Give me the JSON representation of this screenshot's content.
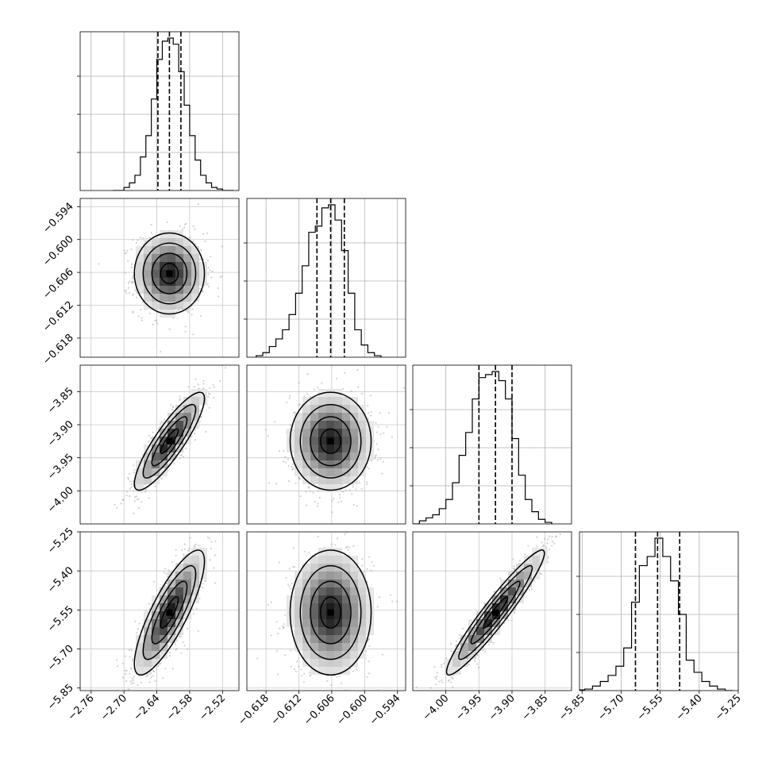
{
  "chart_data": {
    "type": "corner",
    "grid": true,
    "parameters": [
      {
        "name": "",
        "range": [
          -2.78,
          -2.49
        ],
        "ticks": [
          "-2.76",
          "-2.70",
          "-2.64",
          "-2.58",
          "-2.52"
        ],
        "tick_values": [
          -2.76,
          -2.7,
          -2.64,
          -2.58,
          -2.52
        ]
      },
      {
        "name": "",
        "range": [
          -0.6215,
          -0.5925
        ],
        "ticks": [
          "-0.618",
          "-0.612",
          "-0.606",
          "-0.600",
          "-0.594"
        ],
        "tick_values": [
          -0.618,
          -0.612,
          -0.606,
          -0.6,
          -0.594
        ]
      },
      {
        "name": "",
        "range": [
          -4.05,
          -3.81
        ],
        "ticks": [
          "-4.00",
          "-3.95",
          "-3.90",
          "-3.85"
        ],
        "tick_values": [
          -4.0,
          -3.95,
          -3.9,
          -3.85
        ]
      },
      {
        "name": "",
        "range": [
          -5.86,
          -5.25
        ],
        "ticks": [
          "-5.85",
          "-5.70",
          "-5.55",
          "-5.40",
          "-5.25"
        ],
        "tick_values": [
          -5.85,
          -5.7,
          -5.55,
          -5.4,
          -5.25
        ]
      }
    ],
    "y_tick_labels": {
      "row1": [
        "-0.594",
        "-0.600",
        "-0.606",
        "-0.612",
        "-0.618"
      ],
      "row2": [
        "-3.85",
        "-3.90",
        "-3.95",
        "-4.00"
      ],
      "row3": [
        "-5.25",
        "-5.40",
        "-5.55",
        "-5.70",
        "-5.85"
      ]
    },
    "quantiles": [
      [
        -2.638,
        -2.617,
        -2.596
      ],
      [
        -0.6087,
        -0.6062,
        -0.6037
      ],
      [
        -3.95,
        -3.925,
        -3.9
      ],
      [
        -5.645,
        -5.56,
        -5.475
      ]
    ],
    "histograms": [
      {
        "edges": [
          -2.72,
          -2.7,
          -2.69,
          -2.68,
          -2.67,
          -2.66,
          -2.65,
          -2.64,
          -2.63,
          -2.62,
          -2.61,
          -2.6,
          -2.59,
          -2.58,
          -2.57,
          -2.56,
          -2.55,
          -2.54,
          -2.53,
          -2.52,
          -2.5
        ],
        "counts": [
          0,
          0.02,
          0.05,
          0.1,
          0.22,
          0.36,
          0.6,
          0.86,
          0.98,
          1.0,
          0.96,
          0.78,
          0.56,
          0.36,
          0.2,
          0.1,
          0.05,
          0.02,
          0.01,
          0
        ]
      },
      {
        "edges": [
          -0.6198,
          -0.6186,
          -0.6174,
          -0.6162,
          -0.615,
          -0.6138,
          -0.6126,
          -0.6114,
          -0.6102,
          -0.609,
          -0.6078,
          -0.6066,
          -0.6054,
          -0.6042,
          -0.603,
          -0.6018,
          -0.6006,
          -0.5994,
          -0.5982,
          -0.597
        ],
        "counts": [
          0.01,
          0.03,
          0.07,
          0.12,
          0.18,
          0.28,
          0.42,
          0.6,
          0.82,
          0.86,
          0.98,
          1.0,
          0.9,
          0.7,
          0.42,
          0.18,
          0.08,
          0.03,
          0.01
        ]
      },
      {
        "edges": [
          -4.05,
          -4.04,
          -4.03,
          -4.02,
          -4.01,
          -4.0,
          -3.99,
          -3.98,
          -3.97,
          -3.96,
          -3.95,
          -3.94,
          -3.93,
          -3.92,
          -3.91,
          -3.9,
          -3.89,
          -3.88,
          -3.87,
          -3.86,
          -3.85,
          -3.84
        ],
        "counts": [
          0,
          0.02,
          0.04,
          0.06,
          0.1,
          0.16,
          0.27,
          0.45,
          0.6,
          0.82,
          0.96,
          0.98,
          1.0,
          0.94,
          0.82,
          0.56,
          0.32,
          0.16,
          0.08,
          0.03,
          0.01
        ]
      },
      {
        "edges": [
          -5.86,
          -5.84,
          -5.81,
          -5.78,
          -5.75,
          -5.72,
          -5.69,
          -5.66,
          -5.63,
          -5.6,
          -5.57,
          -5.54,
          -5.51,
          -5.48,
          -5.45,
          -5.42,
          -5.39,
          -5.36,
          -5.33,
          -5.3,
          -5.27
        ],
        "counts": [
          0.005,
          0.01,
          0.03,
          0.06,
          0.1,
          0.16,
          0.28,
          0.58,
          0.82,
          0.88,
          1.0,
          0.88,
          0.72,
          0.5,
          0.2,
          0.12,
          0.06,
          0.03,
          0.01,
          0
        ]
      }
    ],
    "pairs": [
      {
        "row": 1,
        "col": 0,
        "mean": [
          -2.617,
          -0.6062
        ],
        "std": [
          0.032,
          0.0037
        ],
        "rho": 0.0
      },
      {
        "row": 2,
        "col": 0,
        "mean": [
          -2.617,
          -3.925
        ],
        "std": [
          0.032,
          0.037
        ],
        "rho": 0.87
      },
      {
        "row": 2,
        "col": 1,
        "mean": [
          -0.6062,
          -3.925
        ],
        "std": [
          0.0037,
          0.037
        ],
        "rho": 0.0
      },
      {
        "row": 3,
        "col": 0,
        "mean": [
          -2.617,
          -5.56
        ],
        "std": [
          0.032,
          0.12
        ],
        "rho": 0.82
      },
      {
        "row": 3,
        "col": 1,
        "mean": [
          -0.6062,
          -5.56
        ],
        "std": [
          0.0037,
          0.12
        ],
        "rho": 0.0
      },
      {
        "row": 3,
        "col": 2,
        "mean": [
          -3.925,
          -5.56
        ],
        "std": [
          0.037,
          0.12
        ],
        "rho": 0.95
      }
    ],
    "contour_levels_sigma": [
      0.5,
      1.0,
      1.5,
      2.0
    ]
  }
}
